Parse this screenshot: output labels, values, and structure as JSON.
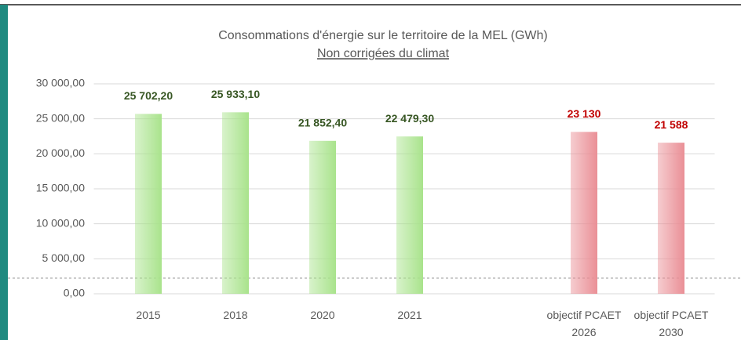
{
  "chart_data": {
    "type": "bar",
    "title": "Consommations d'énergie sur le territoire de la MEL (GWh)",
    "subtitle": "Non corrigées du climat",
    "categories": [
      "2015",
      "2018",
      "2020",
      "2021",
      null,
      "objectif PCAET 2026",
      "objectif PCAET 2030"
    ],
    "values": [
      25702.2,
      25933.1,
      21852.4,
      22479.3,
      null,
      23130,
      21588
    ],
    "value_labels": [
      "25 702,20",
      "25 933,10",
      "21 852,40",
      "22 479,30",
      null,
      "23 130",
      "21 588"
    ],
    "colors": [
      "#a9e38c",
      "#a9e38c",
      "#a9e38c",
      "#a9e38c",
      null,
      "#ea8f96",
      "#ea8f96"
    ],
    "value_label_colors": [
      "#375623",
      "#375623",
      "#375623",
      "#375623",
      null,
      "#c00000",
      "#c00000"
    ],
    "ylim": [
      0,
      30000
    ],
    "yticks": [
      {
        "value": 0,
        "label": "0,00"
      },
      {
        "value": 5000,
        "label": "5 000,00"
      },
      {
        "value": 10000,
        "label": "10 000,00"
      },
      {
        "value": 15000,
        "label": "15 000,00"
      },
      {
        "value": 20000,
        "label": "20 000,00"
      },
      {
        "value": 25000,
        "label": "25 000,00"
      },
      {
        "value": 30000,
        "label": "30 000,00"
      }
    ],
    "grid": true
  }
}
